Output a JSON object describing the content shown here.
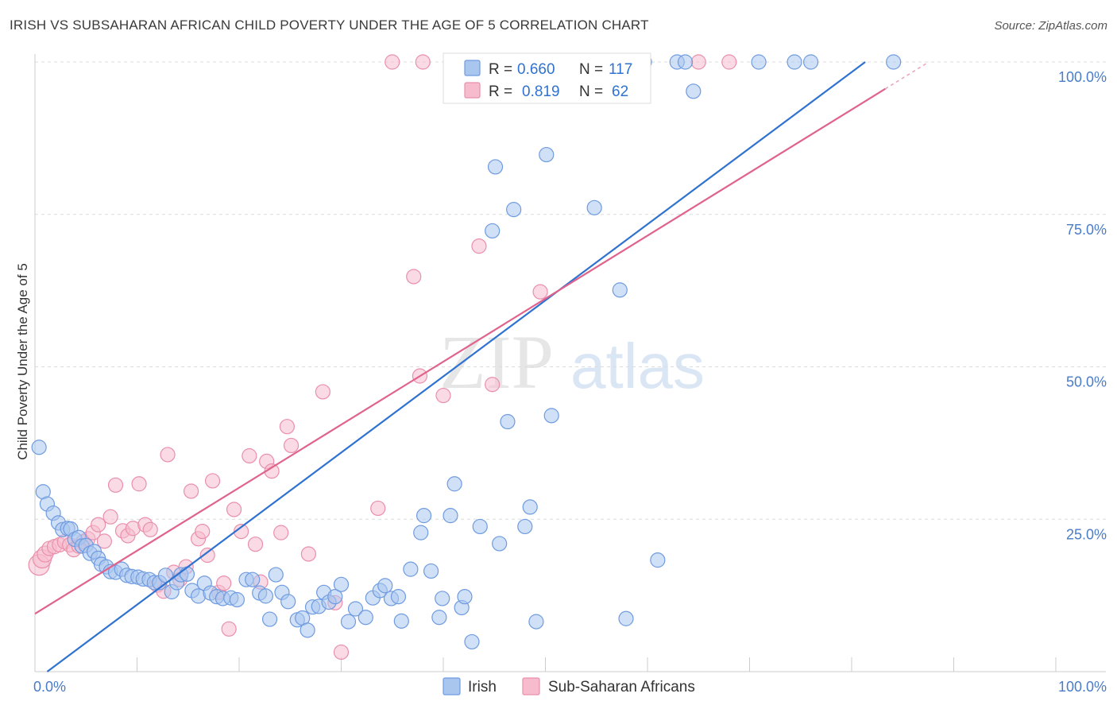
{
  "title": "IRISH VS SUBSAHARAN AFRICAN CHILD POVERTY UNDER THE AGE OF 5 CORRELATION CHART",
  "source": "Source: ZipAtlas.com",
  "watermark": {
    "zip": "ZIP",
    "atlas": "atlas"
  },
  "colors": {
    "irish_fill": "#a9c6ef",
    "irish_stroke": "#6f9be0",
    "irish_line": "#2f72d0",
    "ssa_fill": "#f6bccd",
    "ssa_stroke": "#ea8fab",
    "ssa_line": "#e0638c",
    "tick_text": "#4a7cc7",
    "grid": "#dcdcdc"
  },
  "legend_box": {
    "rows": [
      {
        "r_label": "R =",
        "r_value": "0.660",
        "n_label": "N =",
        "n_value": "117"
      },
      {
        "r_label": "R =",
        "r_value": "0.819",
        "n_label": "N =",
        "n_value": "62"
      }
    ]
  },
  "chart_data": {
    "type": "scatter",
    "title": "IRISH VS SUBSAHARAN AFRICAN CHILD POVERTY UNDER THE AGE OF 5 CORRELATION CHART",
    "xlabel": "",
    "ylabel": "Child Poverty Under the Age of 5",
    "xlim": [
      0,
      100
    ],
    "ylim": [
      0,
      100
    ],
    "x_tick_labels": [
      {
        "value": 0,
        "label": "0.0%"
      },
      {
        "value": 100,
        "label": "100.0%"
      }
    ],
    "y_tick_labels": [
      {
        "value": 25,
        "label": "25.0%"
      },
      {
        "value": 50,
        "label": "50.0%"
      },
      {
        "value": 75,
        "label": "75.0%"
      },
      {
        "value": 100,
        "label": "100.0%"
      }
    ],
    "grid": true,
    "legend_position": "bottom",
    "series": [
      {
        "name": "Irish",
        "r": 0.66,
        "n": 117,
        "trend": {
          "x0": 0,
          "y0": -1.5,
          "x1": 100,
          "y1": 123.3
        },
        "points": [
          [
            0.4,
            36.8
          ],
          [
            0.8,
            29.5
          ],
          [
            1.2,
            27.5
          ],
          [
            1.8,
            26
          ],
          [
            2.3,
            24.4
          ],
          [
            2.7,
            23.3
          ],
          [
            3.2,
            23.5
          ],
          [
            3.5,
            23.4
          ],
          [
            3.9,
            21.7
          ],
          [
            4.3,
            22
          ],
          [
            4.6,
            20.6
          ],
          [
            5,
            20.7
          ],
          [
            5.4,
            19.4
          ],
          [
            5.8,
            19.7
          ],
          [
            6.2,
            18.6
          ],
          [
            6.5,
            17.6
          ],
          [
            7,
            17.2
          ],
          [
            7.4,
            16.4
          ],
          [
            7.9,
            16.3
          ],
          [
            8.5,
            16.8
          ],
          [
            9,
            15.8
          ],
          [
            9.5,
            15.6
          ],
          [
            10.1,
            15.5
          ],
          [
            10.6,
            15.2
          ],
          [
            11.2,
            15.1
          ],
          [
            11.7,
            14.6
          ],
          [
            12.2,
            14.6
          ],
          [
            12.8,
            15.8
          ],
          [
            13.4,
            13.1
          ],
          [
            13.9,
            14.6
          ],
          [
            14.3,
            15.9
          ],
          [
            14.9,
            16
          ],
          [
            15.4,
            13.3
          ],
          [
            16,
            12.4
          ],
          [
            16.6,
            14.5
          ],
          [
            17.2,
            12.9
          ],
          [
            17.8,
            12.3
          ],
          [
            18.4,
            12
          ],
          [
            19.2,
            12.1
          ],
          [
            19.8,
            11.8
          ],
          [
            20.7,
            15.1
          ],
          [
            21.3,
            15.1
          ],
          [
            22,
            12.9
          ],
          [
            22.6,
            12.4
          ],
          [
            23,
            8.6
          ],
          [
            23.6,
            15.9
          ],
          [
            24.2,
            13
          ],
          [
            24.8,
            11.5
          ],
          [
            25.7,
            8.5
          ],
          [
            26.2,
            8.8
          ],
          [
            26.7,
            6.8
          ],
          [
            27.2,
            10.6
          ],
          [
            27.8,
            10.7
          ],
          [
            28.3,
            13
          ],
          [
            28.8,
            11.4
          ],
          [
            29.4,
            12.3
          ],
          [
            30,
            14.3
          ],
          [
            30.7,
            8.2
          ],
          [
            31.4,
            10.3
          ],
          [
            32.4,
            8.9
          ],
          [
            33.1,
            12.1
          ],
          [
            33.8,
            13.3
          ],
          [
            34.3,
            14.1
          ],
          [
            34.9,
            12
          ],
          [
            35.6,
            12.3
          ],
          [
            35.9,
            8.3
          ],
          [
            36.8,
            16.8
          ],
          [
            37.8,
            22.8
          ],
          [
            38.1,
            25.6
          ],
          [
            38.8,
            16.5
          ],
          [
            39.6,
            8.9
          ],
          [
            39.9,
            12
          ],
          [
            40.7,
            25.6
          ],
          [
            41.1,
            30.8
          ],
          [
            41.8,
            10.5
          ],
          [
            42.1,
            12.3
          ],
          [
            42.8,
            4.9
          ],
          [
            43.6,
            23.8
          ],
          [
            44.8,
            72.3
          ],
          [
            45.1,
            82.8
          ],
          [
            45.5,
            21
          ],
          [
            46.3,
            41
          ],
          [
            46.9,
            75.8
          ],
          [
            48,
            23.8
          ],
          [
            48.5,
            27
          ],
          [
            49.1,
            8.2
          ],
          [
            50.1,
            84.8
          ],
          [
            50.6,
            42
          ],
          [
            54.8,
            76.1
          ],
          [
            57.3,
            62.6
          ],
          [
            57.9,
            8.7
          ],
          [
            61,
            18.3
          ],
          [
            62.9,
            100
          ],
          [
            63.7,
            100
          ],
          [
            64.5,
            95.2
          ],
          [
            70.9,
            100
          ],
          [
            74.4,
            100
          ],
          [
            76,
            100
          ],
          [
            84.1,
            100
          ],
          [
            42,
            100.2
          ],
          [
            43.5,
            100
          ],
          [
            45.8,
            100
          ],
          [
            46.5,
            100
          ],
          [
            47.3,
            100
          ],
          [
            48.1,
            100
          ],
          [
            49.4,
            100
          ],
          [
            50.2,
            100
          ],
          [
            51,
            100
          ],
          [
            52.5,
            100
          ],
          [
            53.3,
            100
          ],
          [
            54.1,
            100
          ],
          [
            54.9,
            100
          ],
          [
            55.7,
            100
          ],
          [
            56.5,
            100
          ],
          [
            57.3,
            100
          ],
          [
            58.1,
            100
          ],
          [
            58.9,
            100
          ],
          [
            59.7,
            100
          ]
        ]
      },
      {
        "name": "Sub-Saharan Africans",
        "r": 0.819,
        "n": 62,
        "trend": {
          "x0": 0,
          "y0": 9.5,
          "x1": 83.3,
          "y1": 95.6
        },
        "points": [
          [
            0.4,
            17.5
          ],
          [
            0.7,
            18.5
          ],
          [
            1,
            19.3
          ],
          [
            1.4,
            20.2
          ],
          [
            1.9,
            20.5
          ],
          [
            2.4,
            20.8
          ],
          [
            2.9,
            21.3
          ],
          [
            3.4,
            20.8
          ],
          [
            3.8,
            20
          ],
          [
            4.3,
            20.6
          ],
          [
            4.7,
            21.3
          ],
          [
            5.2,
            21.8
          ],
          [
            5.7,
            22.8
          ],
          [
            6.2,
            24.1
          ],
          [
            6.8,
            21.4
          ],
          [
            7.4,
            25.4
          ],
          [
            7.9,
            30.6
          ],
          [
            8.6,
            23.1
          ],
          [
            9.1,
            22.3
          ],
          [
            9.6,
            23.5
          ],
          [
            10.2,
            30.8
          ],
          [
            10.8,
            24.1
          ],
          [
            11.3,
            23.3
          ],
          [
            12,
            14.2
          ],
          [
            12.6,
            13.2
          ],
          [
            13,
            35.6
          ],
          [
            13.6,
            16.3
          ],
          [
            14.2,
            15.1
          ],
          [
            14.8,
            17.2
          ],
          [
            15.3,
            29.6
          ],
          [
            16,
            21.8
          ],
          [
            16.4,
            23
          ],
          [
            16.9,
            19.1
          ],
          [
            17.4,
            31.3
          ],
          [
            18,
            13
          ],
          [
            18.5,
            14.5
          ],
          [
            19,
            7
          ],
          [
            19.5,
            26.6
          ],
          [
            20.2,
            23
          ],
          [
            21,
            35.4
          ],
          [
            21.6,
            20.9
          ],
          [
            22.1,
            14.7
          ],
          [
            22.7,
            34.5
          ],
          [
            23.2,
            32.9
          ],
          [
            24.1,
            22.8
          ],
          [
            24.7,
            40.2
          ],
          [
            25.1,
            37.1
          ],
          [
            26.8,
            19.3
          ],
          [
            28.2,
            45.9
          ],
          [
            29.4,
            11.3
          ],
          [
            30,
            3.2
          ],
          [
            33.6,
            26.8
          ],
          [
            37.1,
            64.8
          ],
          [
            37.7,
            48.5
          ],
          [
            40,
            45.3
          ],
          [
            43.5,
            69.8
          ],
          [
            44.8,
            47.1
          ],
          [
            49.5,
            62.3
          ],
          [
            65,
            100
          ],
          [
            68,
            100
          ],
          [
            35,
            100
          ],
          [
            38,
            100
          ]
        ]
      }
    ]
  }
}
